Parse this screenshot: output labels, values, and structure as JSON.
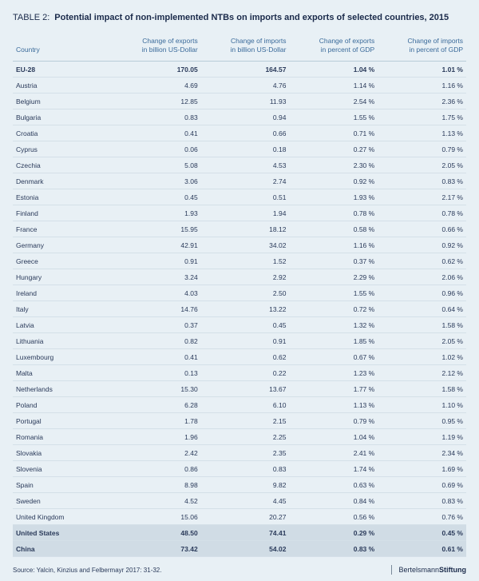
{
  "table": {
    "label": "TABLE 2:",
    "title": "Potential impact of non-implemented NTBs on imports and exports of selected countries, 2015",
    "columns": [
      {
        "key": "country",
        "header": "Country",
        "align": "left"
      },
      {
        "key": "exp_usd",
        "header": "Change of exports\nin billion US-Dollar",
        "align": "right"
      },
      {
        "key": "imp_usd",
        "header": "Change of imports\nin billion US-Dollar",
        "align": "right"
      },
      {
        "key": "exp_gdp",
        "header": "Change of exports\nin percent of GDP",
        "align": "right"
      },
      {
        "key": "imp_gdp",
        "header": "Change of imports\nin percent of GDP",
        "align": "right"
      }
    ],
    "rows": [
      {
        "country": "EU-28",
        "exp_usd": "170.05",
        "imp_usd": "164.57",
        "exp_gdp": "1.04 %",
        "imp_gdp": "1.01 %",
        "bold": true
      },
      {
        "country": "Austria",
        "exp_usd": "4.69",
        "imp_usd": "4.76",
        "exp_gdp": "1.14 %",
        "imp_gdp": "1.16 %"
      },
      {
        "country": "Belgium",
        "exp_usd": "12.85",
        "imp_usd": "11.93",
        "exp_gdp": "2.54 %",
        "imp_gdp": "2.36 %"
      },
      {
        "country": "Bulgaria",
        "exp_usd": "0.83",
        "imp_usd": "0.94",
        "exp_gdp": "1.55 %",
        "imp_gdp": "1.75 %"
      },
      {
        "country": "Croatia",
        "exp_usd": "0.41",
        "imp_usd": "0.66",
        "exp_gdp": "0.71 %",
        "imp_gdp": "1.13 %"
      },
      {
        "country": "Cyprus",
        "exp_usd": "0.06",
        "imp_usd": "0.18",
        "exp_gdp": "0.27 %",
        "imp_gdp": "0.79 %"
      },
      {
        "country": "Czechia",
        "exp_usd": "5.08",
        "imp_usd": "4.53",
        "exp_gdp": "2.30 %",
        "imp_gdp": "2.05 %"
      },
      {
        "country": "Denmark",
        "exp_usd": "3.06",
        "imp_usd": "2.74",
        "exp_gdp": "0.92 %",
        "imp_gdp": "0.83 %"
      },
      {
        "country": "Estonia",
        "exp_usd": "0.45",
        "imp_usd": "0.51",
        "exp_gdp": "1.93 %",
        "imp_gdp": "2.17 %"
      },
      {
        "country": "Finland",
        "exp_usd": "1.93",
        "imp_usd": "1.94",
        "exp_gdp": "0.78 %",
        "imp_gdp": "0.78 %"
      },
      {
        "country": "France",
        "exp_usd": "15.95",
        "imp_usd": "18.12",
        "exp_gdp": "0.58 %",
        "imp_gdp": "0.66 %"
      },
      {
        "country": "Germany",
        "exp_usd": "42.91",
        "imp_usd": "34.02",
        "exp_gdp": "1.16 %",
        "imp_gdp": "0.92 %"
      },
      {
        "country": "Greece",
        "exp_usd": "0.91",
        "imp_usd": "1.52",
        "exp_gdp": "0.37 %",
        "imp_gdp": "0.62 %"
      },
      {
        "country": "Hungary",
        "exp_usd": "3.24",
        "imp_usd": "2.92",
        "exp_gdp": "2.29 %",
        "imp_gdp": "2.06 %"
      },
      {
        "country": "Ireland",
        "exp_usd": "4.03",
        "imp_usd": "2.50",
        "exp_gdp": "1.55 %",
        "imp_gdp": "0.96 %"
      },
      {
        "country": "Italy",
        "exp_usd": "14.76",
        "imp_usd": "13.22",
        "exp_gdp": "0.72 %",
        "imp_gdp": "0.64 %"
      },
      {
        "country": "Latvia",
        "exp_usd": "0.37",
        "imp_usd": "0.45",
        "exp_gdp": "1.32 %",
        "imp_gdp": "1.58 %"
      },
      {
        "country": "Lithuania",
        "exp_usd": "0.82",
        "imp_usd": "0.91",
        "exp_gdp": "1.85 %",
        "imp_gdp": "2.05 %"
      },
      {
        "country": "Luxembourg",
        "exp_usd": "0.41",
        "imp_usd": "0.62",
        "exp_gdp": "0.67 %",
        "imp_gdp": "1.02 %"
      },
      {
        "country": "Malta",
        "exp_usd": "0.13",
        "imp_usd": "0.22",
        "exp_gdp": "1.23 %",
        "imp_gdp": "2.12 %"
      },
      {
        "country": "Netherlands",
        "exp_usd": "15.30",
        "imp_usd": "13.67",
        "exp_gdp": "1.77 %",
        "imp_gdp": "1.58 %"
      },
      {
        "country": "Poland",
        "exp_usd": "6.28",
        "imp_usd": "6.10",
        "exp_gdp": "1.13 %",
        "imp_gdp": "1.10 %"
      },
      {
        "country": "Portugal",
        "exp_usd": "1.78",
        "imp_usd": "2.15",
        "exp_gdp": "0.79 %",
        "imp_gdp": "0.95 %"
      },
      {
        "country": "Romania",
        "exp_usd": "1.96",
        "imp_usd": "2.25",
        "exp_gdp": "1.04 %",
        "imp_gdp": "1.19 %"
      },
      {
        "country": "Slovakia",
        "exp_usd": "2.42",
        "imp_usd": "2.35",
        "exp_gdp": "2.41 %",
        "imp_gdp": "2.34 %"
      },
      {
        "country": "Slovenia",
        "exp_usd": "0.86",
        "imp_usd": "0.83",
        "exp_gdp": "1.74 %",
        "imp_gdp": "1.69 %"
      },
      {
        "country": "Spain",
        "exp_usd": "8.98",
        "imp_usd": "9.82",
        "exp_gdp": "0.63 %",
        "imp_gdp": "0.69 %"
      },
      {
        "country": "Sweden",
        "exp_usd": "4.52",
        "imp_usd": "4.45",
        "exp_gdp": "0.84 %",
        "imp_gdp": "0.83 %"
      },
      {
        "country": "United Kingdom",
        "exp_usd": "15.06",
        "imp_usd": "20.27",
        "exp_gdp": "0.56 %",
        "imp_gdp": "0.76 %"
      },
      {
        "country": "United States",
        "exp_usd": "48.50",
        "imp_usd": "74.41",
        "exp_gdp": "0.29 %",
        "imp_gdp": "0.45 %",
        "highlight": true
      },
      {
        "country": "China",
        "exp_usd": "73.42",
        "imp_usd": "54.02",
        "exp_gdp": "0.83 %",
        "imp_gdp": "0.61 %",
        "highlight": true
      }
    ],
    "source": "Source: Yalcin, Kinzius and Felbermayr 2017: 31-32.",
    "brand1": "Bertelsmann",
    "brand2": "Stiftung",
    "colors": {
      "background": "#e8f0f5",
      "header_text": "#3a6a9a",
      "row_border": "#d4e0e8",
      "highlight_bg": "#d0dce5",
      "text": "#2a3a5a"
    }
  }
}
